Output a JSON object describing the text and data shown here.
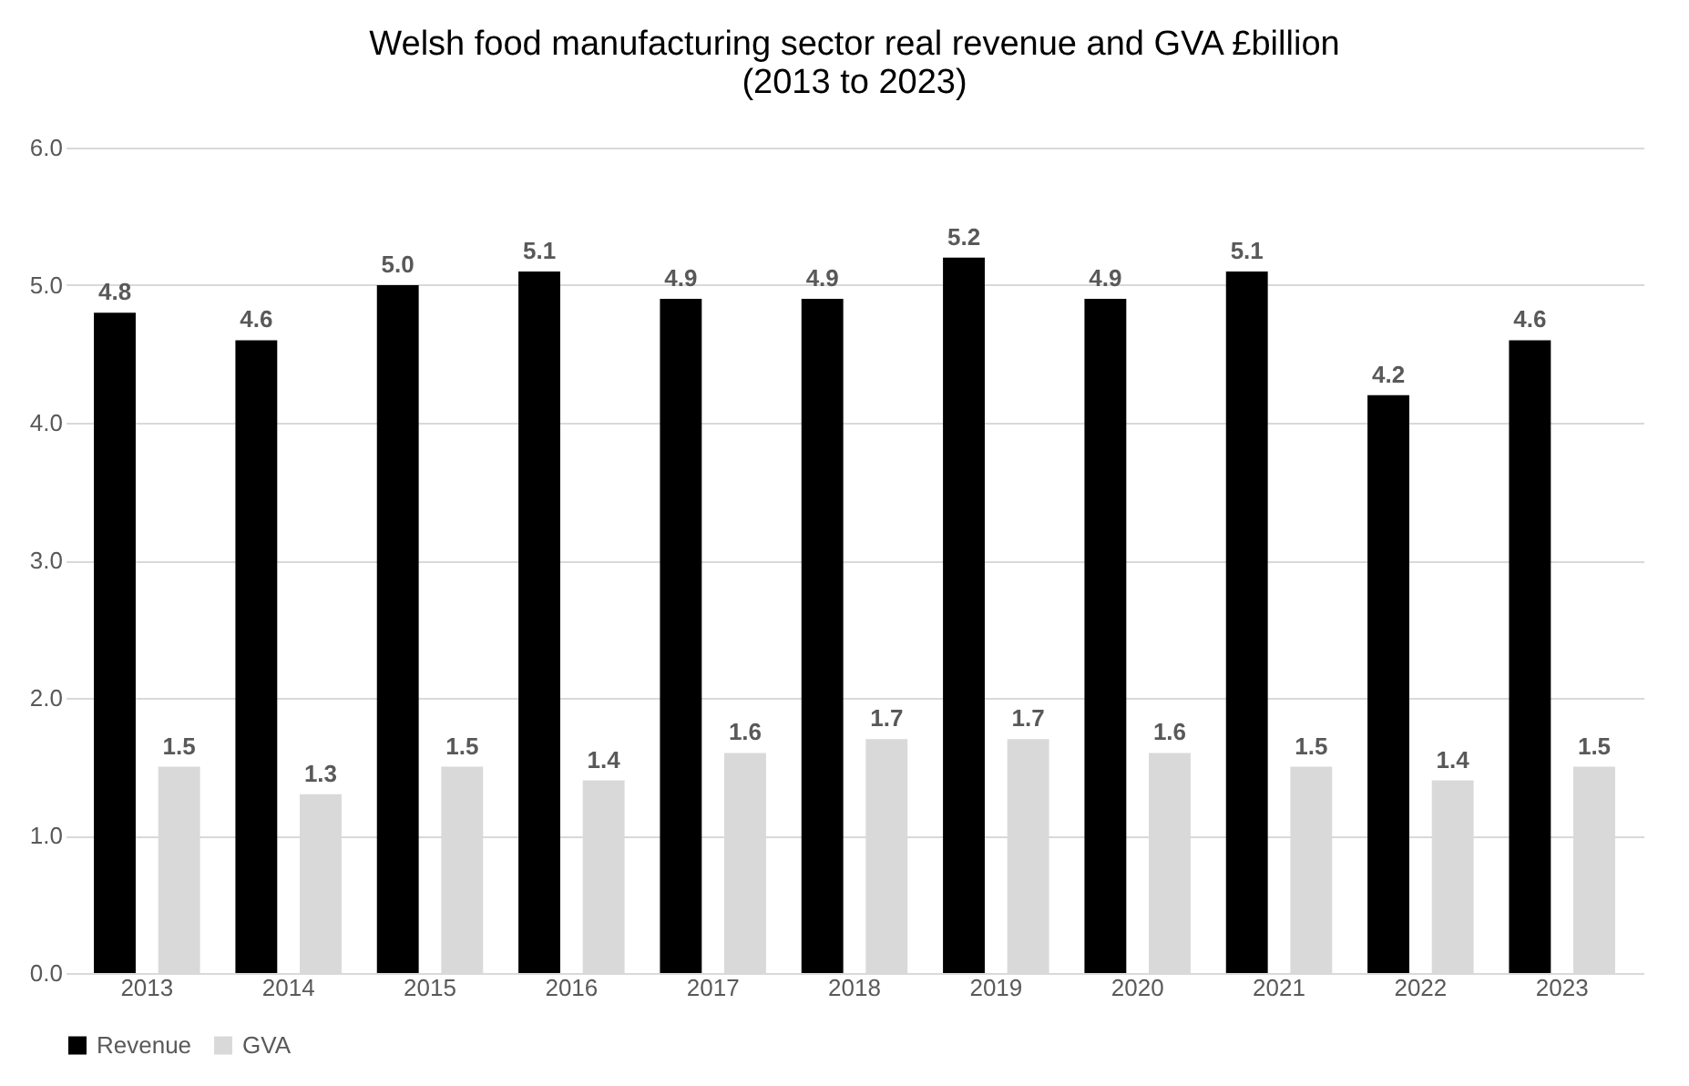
{
  "chart_data": {
    "type": "bar",
    "title": [
      "Welsh food manufacturing sector real revenue and GVA £billion",
      "(2013 to 2023)"
    ],
    "categories": [
      "2013",
      "2014",
      "2015",
      "2016",
      "2017",
      "2018",
      "2019",
      "2020",
      "2021",
      "2022",
      "2023"
    ],
    "series": [
      {
        "name": "Revenue",
        "color": "#000000",
        "values": [
          4.8,
          4.6,
          5.0,
          5.1,
          4.9,
          4.9,
          5.2,
          4.9,
          5.1,
          4.2,
          4.6
        ],
        "value_labels": [
          "4.8",
          "4.6",
          "5.0",
          "5.1",
          "4.9",
          "4.9",
          "5.2",
          "4.9",
          "5.1",
          "4.2",
          "4.6"
        ]
      },
      {
        "name": "GVA",
        "color": "#d9d9d9",
        "values": [
          1.5,
          1.3,
          1.5,
          1.4,
          1.6,
          1.7,
          1.7,
          1.6,
          1.5,
          1.4,
          1.5
        ],
        "value_labels": [
          "1.5",
          "1.3",
          "1.5",
          "1.4",
          "1.6",
          "1.7",
          "1.7",
          "1.6",
          "1.5",
          "1.4",
          "1.5"
        ]
      }
    ],
    "ylim": [
      0,
      6
    ],
    "yticks": [
      {
        "value": 0,
        "label": "0.0"
      },
      {
        "value": 1,
        "label": "1.0"
      },
      {
        "value": 2,
        "label": "2.0"
      },
      {
        "value": 3,
        "label": "3.0"
      },
      {
        "value": 4,
        "label": "4.0"
      },
      {
        "value": 5,
        "label": "5.0"
      },
      {
        "value": 6,
        "label": "6.0"
      }
    ],
    "grid": "y",
    "legend": "bottom"
  }
}
